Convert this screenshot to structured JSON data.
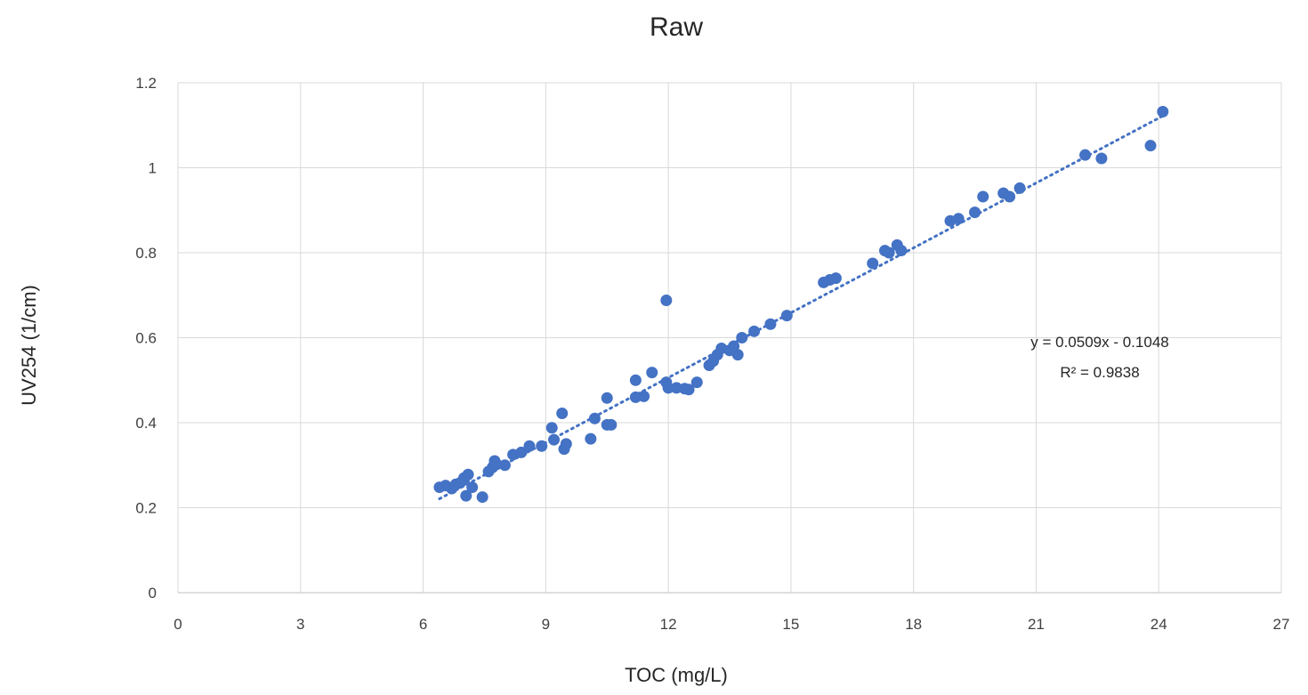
{
  "chart_data": {
    "type": "scatter",
    "title": "Raw",
    "xlabel": "TOC (mg/L)",
    "ylabel": "UV254 (1/cm)",
    "xlim": [
      0,
      27
    ],
    "ylim": [
      0,
      1.2
    ],
    "x_ticks": [
      0,
      3,
      6,
      9,
      12,
      15,
      18,
      21,
      24,
      27
    ],
    "y_ticks": [
      0,
      0.2,
      0.4,
      0.6,
      0.8,
      1,
      1.2
    ],
    "x_tick_labels": [
      "0",
      "3",
      "6",
      "9",
      "12",
      "15",
      "18",
      "21",
      "24",
      "27"
    ],
    "y_tick_labels": [
      "0",
      "0.2",
      "0.4",
      "0.6",
      "0.8",
      "1",
      "1.2"
    ],
    "grid": true,
    "marker_color": "#4472C4",
    "trendline": {
      "type": "linear",
      "slope": 0.0509,
      "intercept": -0.1048,
      "x_range": [
        6.4,
        24.1
      ],
      "style": "dotted",
      "equation_label": "y = 0.0509x  - 0.1048",
      "r2_label": "R² = 0.9838"
    },
    "series": [
      {
        "points": [
          [
            6.4,
            0.248
          ],
          [
            6.55,
            0.252
          ],
          [
            6.7,
            0.245
          ],
          [
            6.8,
            0.255
          ],
          [
            6.9,
            0.258
          ],
          [
            7.0,
            0.265
          ],
          [
            7.1,
            0.278
          ],
          [
            7.05,
            0.228
          ],
          [
            7.2,
            0.248
          ],
          [
            7.45,
            0.225
          ],
          [
            7.0,
            0.27
          ],
          [
            7.6,
            0.285
          ],
          [
            7.7,
            0.295
          ],
          [
            7.75,
            0.31
          ],
          [
            7.8,
            0.302
          ],
          [
            8.0,
            0.3
          ],
          [
            8.2,
            0.325
          ],
          [
            8.4,
            0.33
          ],
          [
            8.6,
            0.345
          ],
          [
            8.9,
            0.345
          ],
          [
            9.15,
            0.388
          ],
          [
            9.2,
            0.36
          ],
          [
            9.4,
            0.422
          ],
          [
            9.45,
            0.338
          ],
          [
            9.5,
            0.35
          ],
          [
            10.1,
            0.362
          ],
          [
            10.2,
            0.41
          ],
          [
            10.5,
            0.458
          ],
          [
            10.5,
            0.395
          ],
          [
            10.6,
            0.395
          ],
          [
            11.2,
            0.5
          ],
          [
            11.2,
            0.46
          ],
          [
            11.4,
            0.462
          ],
          [
            11.6,
            0.518
          ],
          [
            11.95,
            0.688
          ],
          [
            11.95,
            0.495
          ],
          [
            12.0,
            0.482
          ],
          [
            12.2,
            0.482
          ],
          [
            12.4,
            0.48
          ],
          [
            12.5,
            0.478
          ],
          [
            12.7,
            0.495
          ],
          [
            13.0,
            0.535
          ],
          [
            13.1,
            0.545
          ],
          [
            13.2,
            0.56
          ],
          [
            13.3,
            0.575
          ],
          [
            13.5,
            0.57
          ],
          [
            13.6,
            0.58
          ],
          [
            13.7,
            0.56
          ],
          [
            13.8,
            0.6
          ],
          [
            14.1,
            0.615
          ],
          [
            14.5,
            0.632
          ],
          [
            14.9,
            0.652
          ],
          [
            15.8,
            0.73
          ],
          [
            15.95,
            0.736
          ],
          [
            16.1,
            0.74
          ],
          [
            17.0,
            0.775
          ],
          [
            17.3,
            0.805
          ],
          [
            17.4,
            0.8
          ],
          [
            17.6,
            0.818
          ],
          [
            17.7,
            0.805
          ],
          [
            18.9,
            0.875
          ],
          [
            19.1,
            0.88
          ],
          [
            19.5,
            0.895
          ],
          [
            19.7,
            0.932
          ],
          [
            20.2,
            0.94
          ],
          [
            20.35,
            0.932
          ],
          [
            20.6,
            0.952
          ],
          [
            22.2,
            1.03
          ],
          [
            22.6,
            1.022
          ],
          [
            23.8,
            1.052
          ],
          [
            24.1,
            1.132
          ]
        ]
      }
    ]
  }
}
